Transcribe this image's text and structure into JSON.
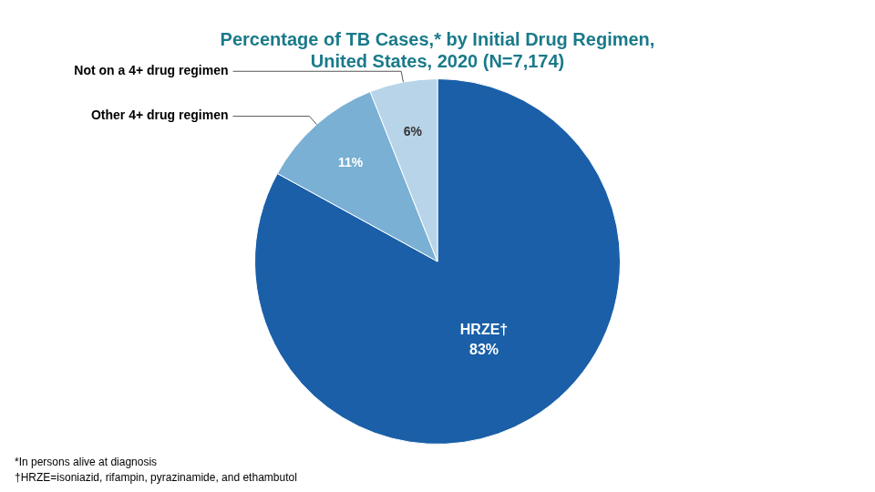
{
  "chart_data": {
    "type": "pie",
    "title": [
      "Percentage of TB Cases,* by Initial Drug Regimen,",
      "United States, 2020 (N=7,174)"
    ],
    "categories": [
      "HRZE†",
      "Other 4+ drug regimen",
      "Not on a 4+ drug regimen"
    ],
    "values": [
      83,
      11,
      6
    ],
    "value_labels": [
      "83%",
      "11%",
      "6%"
    ],
    "data_labels": true,
    "colors": [
      "#1a5fa8",
      "#7ab0d4",
      "#b8d4e8"
    ],
    "title_color": "#1a7a8a",
    "annotations": [
      "*In persons alive at diagnosis",
      "†HRZE=isoniazid, rifampin, pyrazinamide, and ethambutol"
    ]
  }
}
